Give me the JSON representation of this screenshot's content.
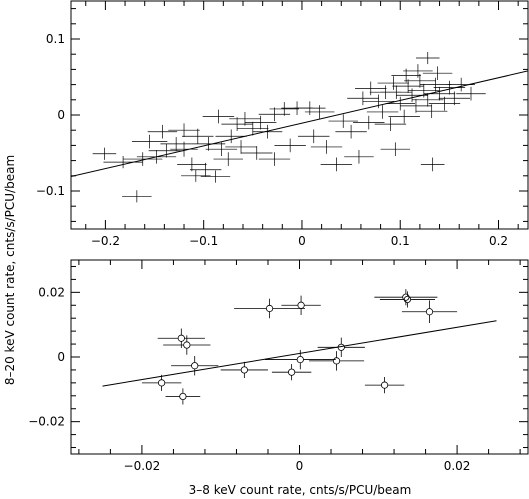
{
  "figure": {
    "ylabel": "8–20 keV count rate, cnts/s/PCU/beam",
    "xlabel": "3–8 keV count rate, cnts/s/PCU/beam"
  },
  "chart_data": [
    {
      "type": "scatter",
      "marker": "none",
      "xlim": [
        -0.235,
        0.23
      ],
      "ylim": [
        -0.15,
        0.15
      ],
      "xticks": [
        -0.2,
        -0.1,
        0,
        0.1,
        0.2
      ],
      "xtick_labels": [
        "−0.2",
        "−0.1",
        "0",
        "0.1",
        "0.2"
      ],
      "yticks": [
        -0.1,
        0,
        0.1
      ],
      "ytick_labels": [
        "−0.1",
        "0",
        "0.1"
      ],
      "grid": false,
      "fit_line": {
        "x": [
          -0.235,
          0.23
        ],
        "y": [
          -0.081,
          0.058
        ]
      },
      "points": [
        {
          "x": -0.201,
          "y": -0.051,
          "xerr": 0.012,
          "yerr": 0.008
        },
        {
          "x": -0.168,
          "y": -0.107,
          "xerr": 0.015,
          "yerr": 0.008
        },
        {
          "x": -0.182,
          "y": -0.062,
          "xerr": 0.02,
          "yerr": 0.008
        },
        {
          "x": -0.162,
          "y": -0.058,
          "xerr": 0.02,
          "yerr": 0.009
        },
        {
          "x": -0.148,
          "y": -0.055,
          "xerr": 0.02,
          "yerr": 0.009
        },
        {
          "x": -0.138,
          "y": -0.047,
          "xerr": 0.018,
          "yerr": 0.009
        },
        {
          "x": -0.155,
          "y": -0.035,
          "xerr": 0.018,
          "yerr": 0.009
        },
        {
          "x": -0.142,
          "y": -0.022,
          "xerr": 0.015,
          "yerr": 0.009
        },
        {
          "x": -0.128,
          "y": -0.038,
          "xerr": 0.016,
          "yerr": 0.009
        },
        {
          "x": -0.12,
          "y": -0.045,
          "xerr": 0.014,
          "yerr": 0.01
        },
        {
          "x": -0.112,
          "y": -0.065,
          "xerr": 0.015,
          "yerr": 0.009
        },
        {
          "x": -0.098,
          "y": -0.072,
          "xerr": 0.016,
          "yerr": 0.009
        },
        {
          "x": -0.088,
          "y": -0.081,
          "xerr": 0.015,
          "yerr": 0.008
        },
        {
          "x": -0.108,
          "y": -0.08,
          "xerr": 0.015,
          "yerr": 0.008
        },
        {
          "x": -0.12,
          "y": -0.02,
          "xerr": 0.016,
          "yerr": 0.009
        },
        {
          "x": -0.106,
          "y": -0.028,
          "xerr": 0.016,
          "yerr": 0.01
        },
        {
          "x": -0.095,
          "y": -0.038,
          "xerr": 0.017,
          "yerr": 0.009
        },
        {
          "x": -0.082,
          "y": -0.045,
          "xerr": 0.016,
          "yerr": 0.009
        },
        {
          "x": -0.075,
          "y": -0.058,
          "xerr": 0.015,
          "yerr": 0.009
        },
        {
          "x": -0.072,
          "y": -0.028,
          "xerr": 0.016,
          "yerr": 0.009
        },
        {
          "x": -0.066,
          "y": -0.012,
          "xerr": 0.016,
          "yerr": 0.009
        },
        {
          "x": -0.058,
          "y": -0.005,
          "xerr": 0.016,
          "yerr": 0.009
        },
        {
          "x": -0.05,
          "y": -0.018,
          "xerr": 0.016,
          "yerr": 0.009
        },
        {
          "x": -0.042,
          "y": -0.01,
          "xerr": 0.016,
          "yerr": 0.009
        },
        {
          "x": -0.035,
          "y": -0.022,
          "xerr": 0.015,
          "yerr": 0.009
        },
        {
          "x": -0.028,
          "y": 0.001,
          "xerr": 0.016,
          "yerr": 0.009
        },
        {
          "x": -0.018,
          "y": 0.008,
          "xerr": 0.015,
          "yerr": 0.009
        },
        {
          "x": -0.005,
          "y": 0.009,
          "xerr": 0.016,
          "yerr": 0.009
        },
        {
          "x": 0.008,
          "y": 0.009,
          "xerr": 0.016,
          "yerr": 0.009
        },
        {
          "x": -0.062,
          "y": -0.042,
          "xerr": 0.016,
          "yerr": 0.009
        },
        {
          "x": -0.046,
          "y": -0.05,
          "xerr": 0.016,
          "yerr": 0.009
        },
        {
          "x": -0.028,
          "y": -0.058,
          "xerr": 0.016,
          "yerr": 0.009
        },
        {
          "x": -0.012,
          "y": -0.04,
          "xerr": 0.016,
          "yerr": 0.009
        },
        {
          "x": 0.012,
          "y": -0.028,
          "xerr": 0.016,
          "yerr": 0.009
        },
        {
          "x": 0.025,
          "y": -0.042,
          "xerr": 0.016,
          "yerr": 0.009
        },
        {
          "x": 0.035,
          "y": -0.065,
          "xerr": 0.016,
          "yerr": 0.009
        },
        {
          "x": 0.042,
          "y": -0.008,
          "xerr": 0.015,
          "yerr": 0.009
        },
        {
          "x": 0.05,
          "y": -0.022,
          "xerr": 0.016,
          "yerr": 0.009
        },
        {
          "x": 0.058,
          "y": -0.055,
          "xerr": 0.015,
          "yerr": 0.009
        },
        {
          "x": 0.068,
          "y": -0.01,
          "xerr": 0.016,
          "yerr": 0.009
        },
        {
          "x": 0.062,
          "y": 0.022,
          "xerr": 0.016,
          "yerr": 0.009
        },
        {
          "x": 0.07,
          "y": 0.035,
          "xerr": 0.016,
          "yerr": 0.009
        },
        {
          "x": 0.078,
          "y": 0.018,
          "xerr": 0.016,
          "yerr": 0.009
        },
        {
          "x": 0.082,
          "y": 0.004,
          "xerr": 0.016,
          "yerr": 0.009
        },
        {
          "x": 0.09,
          "y": -0.012,
          "xerr": 0.016,
          "yerr": 0.009
        },
        {
          "x": 0.096,
          "y": 0.03,
          "xerr": 0.016,
          "yerr": 0.009
        },
        {
          "x": 0.1,
          "y": 0.015,
          "xerr": 0.015,
          "yerr": 0.009
        },
        {
          "x": 0.104,
          "y": -0.002,
          "xerr": 0.016,
          "yerr": 0.009
        },
        {
          "x": 0.108,
          "y": 0.038,
          "xerr": 0.016,
          "yerr": 0.009
        },
        {
          "x": 0.112,
          "y": 0.026,
          "xerr": 0.016,
          "yerr": 0.009
        },
        {
          "x": 0.116,
          "y": 0.012,
          "xerr": 0.016,
          "yerr": 0.009
        },
        {
          "x": 0.12,
          "y": 0.045,
          "xerr": 0.016,
          "yerr": 0.009
        },
        {
          "x": 0.124,
          "y": 0.032,
          "xerr": 0.016,
          "yerr": 0.009
        },
        {
          "x": 0.128,
          "y": 0.02,
          "xerr": 0.016,
          "yerr": 0.009
        },
        {
          "x": 0.132,
          "y": 0.005,
          "xerr": 0.016,
          "yerr": 0.009
        },
        {
          "x": 0.136,
          "y": 0.04,
          "xerr": 0.016,
          "yerr": 0.009
        },
        {
          "x": 0.14,
          "y": 0.028,
          "xerr": 0.016,
          "yerr": 0.009
        },
        {
          "x": 0.145,
          "y": 0.015,
          "xerr": 0.016,
          "yerr": 0.009
        },
        {
          "x": 0.15,
          "y": 0.036,
          "xerr": 0.016,
          "yerr": 0.009
        },
        {
          "x": 0.128,
          "y": 0.075,
          "xerr": 0.012,
          "yerr": 0.008
        },
        {
          "x": 0.106,
          "y": 0.052,
          "xerr": 0.015,
          "yerr": 0.009
        },
        {
          "x": 0.118,
          "y": 0.058,
          "xerr": 0.015,
          "yerr": 0.009
        },
        {
          "x": 0.138,
          "y": 0.055,
          "xerr": 0.015,
          "yerr": 0.009
        },
        {
          "x": 0.093,
          "y": 0.042,
          "xerr": 0.016,
          "yerr": 0.009
        },
        {
          "x": 0.085,
          "y": 0.03,
          "xerr": 0.016,
          "yerr": 0.009
        },
        {
          "x": 0.155,
          "y": 0.022,
          "xerr": 0.016,
          "yerr": 0.009
        },
        {
          "x": 0.162,
          "y": 0.04,
          "xerr": 0.014,
          "yerr": 0.009
        },
        {
          "x": 0.172,
          "y": 0.028,
          "xerr": 0.015,
          "yerr": 0.009
        },
        {
          "x": 0.095,
          "y": -0.045,
          "xerr": 0.015,
          "yerr": 0.009
        },
        {
          "x": 0.133,
          "y": -0.065,
          "xerr": 0.012,
          "yerr": 0.009
        },
        {
          "x": 0.018,
          "y": 0.004,
          "xerr": 0.015,
          "yerr": 0.009
        },
        {
          "x": -0.085,
          "y": -0.002,
          "xerr": 0.016,
          "yerr": 0.009
        }
      ]
    },
    {
      "type": "scatter",
      "marker": "circle",
      "xlim": [
        -0.029,
        0.029
      ],
      "ylim": [
        -0.03,
        0.03
      ],
      "xticks": [
        -0.02,
        0,
        0.02
      ],
      "xtick_labels": [
        "−0.02",
        "0",
        "0.02"
      ],
      "yticks": [
        -0.02,
        0,
        0.02
      ],
      "ytick_labels": [
        "−0.02",
        "0",
        "0.02"
      ],
      "grid": false,
      "fit_line": {
        "x": [
          -0.025,
          0.025
        ],
        "y": [
          -0.009,
          0.0112
        ]
      },
      "points": [
        {
          "x": -0.0175,
          "y": -0.008,
          "xerr": 0.0025,
          "yerr": 0.0025
        },
        {
          "x": -0.015,
          "y": 0.0058,
          "xerr": 0.003,
          "yerr": 0.003
        },
        {
          "x": -0.0143,
          "y": 0.0037,
          "xerr": 0.003,
          "yerr": 0.003
        },
        {
          "x": -0.0133,
          "y": -0.0027,
          "xerr": 0.003,
          "yerr": 0.003
        },
        {
          "x": -0.0148,
          "y": -0.0122,
          "xerr": 0.0022,
          "yerr": 0.0025
        },
        {
          "x": -0.007,
          "y": -0.004,
          "xerr": 0.003,
          "yerr": 0.0025
        },
        {
          "x": -0.0038,
          "y": 0.015,
          "xerr": 0.0045,
          "yerr": 0.003
        },
        {
          "x": 0.0002,
          "y": 0.016,
          "xerr": 0.0025,
          "yerr": 0.003
        },
        {
          "x": -0.001,
          "y": -0.0047,
          "xerr": 0.0025,
          "yerr": 0.0025
        },
        {
          "x": 0.0001,
          "y": -0.0008,
          "xerr": 0.0045,
          "yerr": 0.003
        },
        {
          "x": 0.0047,
          "y": -0.0012,
          "xerr": 0.0035,
          "yerr": 0.003
        },
        {
          "x": 0.0053,
          "y": 0.003,
          "xerr": 0.003,
          "yerr": 0.003
        },
        {
          "x": 0.0108,
          "y": -0.0087,
          "xerr": 0.0025,
          "yerr": 0.0025
        },
        {
          "x": 0.0135,
          "y": 0.0185,
          "xerr": 0.004,
          "yerr": 0.0025
        },
        {
          "x": 0.0137,
          "y": 0.0178,
          "xerr": 0.0035,
          "yerr": 0.0025
        },
        {
          "x": 0.0165,
          "y": 0.014,
          "xerr": 0.0035,
          "yerr": 0.0035
        }
      ]
    }
  ]
}
